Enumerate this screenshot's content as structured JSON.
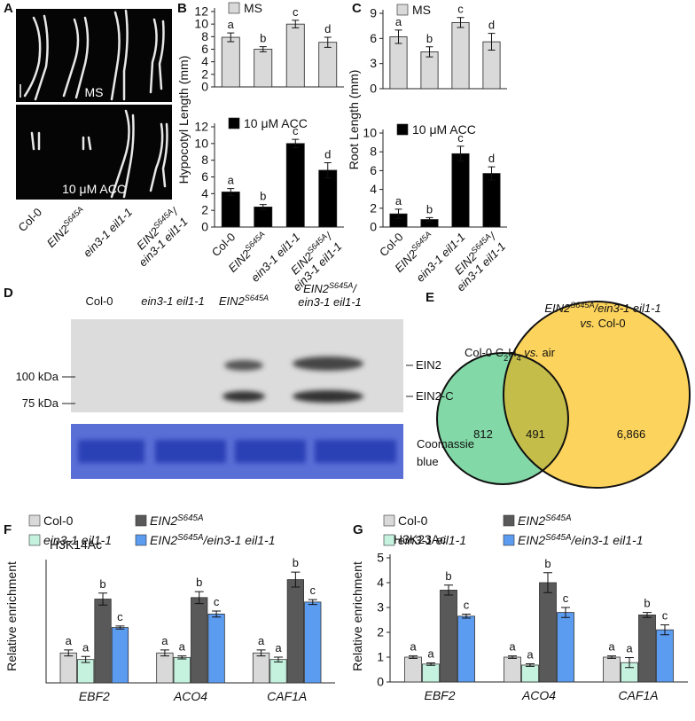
{
  "panel_labels": [
    "A",
    "B",
    "C",
    "D",
    "E",
    "F",
    "G"
  ],
  "panel_a": {
    "conditions": [
      "MS",
      "10 μM ACC"
    ],
    "genotypes": [
      [
        [
          {
            "t": "Col-0"
          }
        ]
      ],
      [
        [
          {
            "t": "EIN2",
            "i": true
          },
          {
            "t": "S645A",
            "i": true,
            "sup": true
          }
        ]
      ],
      [
        [
          {
            "t": "ein3-1 eil1-1",
            "i": true
          }
        ]
      ],
      [
        [
          {
            "t": "EIN2",
            "i": true
          },
          {
            "t": "S645A",
            "i": true,
            "sup": true
          },
          {
            "t": "/",
            "i": true
          }
        ],
        [
          {
            "t": "ein3-1 eil1-1",
            "i": true
          }
        ]
      ]
    ]
  },
  "panel_d": {
    "headers": [
      [
        [
          {
            "t": "Col-0"
          }
        ]
      ],
      [
        [
          {
            "t": "ein3-1 eil1-1",
            "i": true
          }
        ]
      ],
      [
        [
          {
            "t": "EIN2",
            "i": true
          },
          {
            "t": "S645A",
            "i": true,
            "sup": true
          }
        ]
      ],
      [
        [
          {
            "t": "EIN2",
            "i": true
          },
          {
            "t": "S645A",
            "i": true,
            "sup": true
          },
          {
            "t": "/",
            "i": true
          }
        ],
        [
          {
            "t": "ein3-1 eil1-1",
            "i": true
          }
        ]
      ]
    ],
    "markers": [
      "100 kDa",
      "75 kDa"
    ],
    "bands": [
      "EIN2",
      "EIN2-C"
    ],
    "stain": [
      "Coomassie",
      "blue"
    ]
  },
  "panel_e": {
    "left_title": [
      [
        {
          "t": "Col-0 C"
        },
        {
          "t": "2",
          "sub": true
        },
        {
          "t": "H"
        },
        {
          "t": "4",
          "sub": true
        },
        {
          "t": " "
        },
        {
          "t": "vs.",
          "i": true
        },
        {
          "t": " air"
        }
      ]
    ],
    "right_title": [
      [
        {
          "t": "EIN2",
          "i": true
        },
        {
          "t": "S645A",
          "i": true,
          "sup": true
        },
        {
          "t": "/ein3-1 eil1-1",
          "i": true
        }
      ],
      [
        {
          "t": "vs.",
          "i": true
        },
        {
          "t": " Col-0"
        }
      ]
    ],
    "left_only": "812",
    "overlap": "491",
    "right_only": "6,866"
  },
  "chart_data": [
    {
      "type": "bar",
      "ylim": [
        0,
        12
      ],
      "yticks": [
        0,
        2,
        4,
        6,
        8,
        10,
        12
      ],
      "series": [
        {
          "name": [
            [
              {
                "t": "MS"
              }
            ]
          ],
          "color": "#d9d9d9",
          "values": [
            7.9,
            6.0,
            10.0,
            7.1
          ],
          "errors": [
            0.7,
            0.4,
            0.6,
            0.8
          ],
          "letters": [
            "a",
            "b",
            "c",
            "d"
          ]
        }
      ]
    },
    {
      "type": "bar",
      "ylim": [
        0,
        12
      ],
      "yticks": [
        0,
        2,
        4,
        6,
        8,
        10,
        12
      ],
      "ylabel": "Hypocotyl Length (mm)",
      "categories": [
        [
          [
            {
              "t": "Col-0"
            }
          ]
        ],
        [
          [
            {
              "t": "EIN2",
              "i": true
            },
            {
              "t": "S645A",
              "i": true,
              "sup": true
            }
          ]
        ],
        [
          [
            {
              "t": "ein3-1 eil1-1",
              "i": true
            }
          ]
        ],
        [
          [
            {
              "t": "EIN2",
              "i": true
            },
            {
              "t": "S645A",
              "i": true,
              "sup": true
            },
            {
              "t": "/",
              "i": true
            }
          ],
          [
            {
              "t": "ein3-1 eil1-1",
              "i": true
            }
          ]
        ]
      ],
      "series": [
        {
          "name": [
            [
              {
                "t": "10 μM ACC"
              }
            ]
          ],
          "color": "#000000",
          "values": [
            4.2,
            2.4,
            10.0,
            6.8
          ],
          "errors": [
            0.4,
            0.3,
            0.5,
            0.9
          ],
          "letters": [
            "a",
            "b",
            "c",
            "d"
          ]
        }
      ]
    },
    {
      "type": "bar",
      "ylim": [
        0,
        9
      ],
      "yticks": [
        0,
        3,
        6,
        9
      ],
      "series": [
        {
          "name": [
            [
              {
                "t": "MS"
              }
            ]
          ],
          "color": "#d9d9d9",
          "values": [
            6.2,
            4.4,
            7.9,
            5.6
          ],
          "errors": [
            0.8,
            0.6,
            0.6,
            1.0
          ],
          "letters": [
            "a",
            "b",
            "c",
            "d"
          ]
        }
      ]
    },
    {
      "type": "bar",
      "ylim": [
        0,
        10
      ],
      "yticks": [
        0,
        2,
        4,
        6,
        8,
        10
      ],
      "ylabel": "Root Length (mm)",
      "categories": [
        [
          [
            {
              "t": "Col-0"
            }
          ]
        ],
        [
          [
            {
              "t": "EIN2",
              "i": true
            },
            {
              "t": "S645A",
              "i": true,
              "sup": true
            }
          ]
        ],
        [
          [
            {
              "t": "ein3-1 eil1-1",
              "i": true
            }
          ]
        ],
        [
          [
            {
              "t": "EIN2",
              "i": true
            },
            {
              "t": "S645A",
              "i": true,
              "sup": true
            },
            {
              "t": "/",
              "i": true
            }
          ],
          [
            {
              "t": "ein3-1 eil1-1",
              "i": true
            }
          ]
        ]
      ],
      "series": [
        {
          "name": [
            [
              {
                "t": "10 μM ACC"
              }
            ]
          ],
          "color": "#000000",
          "values": [
            1.4,
            0.8,
            7.8,
            5.7
          ],
          "errors": [
            0.5,
            0.2,
            0.8,
            0.7
          ],
          "letters": [
            "a",
            "b",
            "c",
            "d"
          ]
        }
      ]
    },
    {
      "type": "grouped_bar",
      "ylim": [
        0,
        4
      ],
      "ylabel": "Relative enrichment",
      "annotation": "H3K14Ac",
      "categories": [
        [
          [
            {
              "t": "EBF2",
              "i": true
            }
          ]
        ],
        [
          [
            {
              "t": "ACO4",
              "i": true
            }
          ]
        ],
        [
          [
            {
              "t": "CAF1A",
              "i": true
            }
          ]
        ]
      ],
      "series": [
        {
          "name": [
            [
              {
                "t": "Col-0"
              }
            ]
          ],
          "color": "#d9d9d9",
          "values": [
            1.0,
            1.0,
            1.0
          ],
          "errors": [
            0.1,
            0.1,
            0.1
          ],
          "letters": [
            "a",
            "a",
            "a"
          ]
        },
        {
          "name": [
            [
              {
                "t": "ein3-1 eil1-1",
                "i": true
              }
            ]
          ],
          "color": "#c4f2de",
          "values": [
            0.78,
            0.85,
            0.78
          ],
          "errors": [
            0.1,
            0.05,
            0.08
          ],
          "letters": [
            "a",
            "a",
            "a"
          ]
        },
        {
          "name": [
            [
              {
                "t": "EIN2",
                "i": true
              },
              {
                "t": "S645A",
                "i": true,
                "sup": true
              }
            ]
          ],
          "color": "#595959",
          "values": [
            2.8,
            2.85,
            3.45
          ],
          "errors": [
            0.2,
            0.2,
            0.25
          ],
          "letters": [
            "b",
            "b",
            "b"
          ]
        },
        {
          "name": [
            [
              {
                "t": "EIN2",
                "i": true
              },
              {
                "t": "S645A",
                "i": true,
                "sup": true
              },
              {
                "t": "/ein3-1 eil1-1",
                "i": true
              }
            ]
          ],
          "color": "#5b9bf0",
          "values": [
            1.85,
            2.3,
            2.7
          ],
          "errors": [
            0.05,
            0.1,
            0.08
          ],
          "letters": [
            "c",
            "c",
            "c"
          ]
        }
      ]
    },
    {
      "type": "grouped_bar",
      "ylim": [
        0,
        5
      ],
      "yticks": [
        0,
        1,
        2,
        3,
        4,
        5
      ],
      "ylabel": "Relative enrichment",
      "annotation": "H3K23Ac",
      "categories": [
        [
          [
            {
              "t": "EBF2",
              "i": true
            }
          ]
        ],
        [
          [
            {
              "t": "ACO4",
              "i": true
            }
          ]
        ],
        [
          [
            {
              "t": "CAF1A",
              "i": true
            }
          ]
        ]
      ],
      "series": [
        {
          "name": [
            [
              {
                "t": "Col-0"
              }
            ]
          ],
          "color": "#d9d9d9",
          "values": [
            1.0,
            1.0,
            1.0
          ],
          "errors": [
            0.05,
            0.05,
            0.05
          ],
          "letters": [
            "a",
            "a",
            "a"
          ]
        },
        {
          "name": [
            [
              {
                "t": "ein3-1 eil1-1",
                "i": true
              }
            ]
          ],
          "color": "#c4f2de",
          "values": [
            0.72,
            0.68,
            0.78
          ],
          "errors": [
            0.05,
            0.05,
            0.2
          ],
          "letters": [
            "a",
            "a",
            "a"
          ]
        },
        {
          "name": [
            [
              {
                "t": "EIN2",
                "i": true
              },
              {
                "t": "S645A",
                "i": true,
                "sup": true
              }
            ]
          ],
          "color": "#595959",
          "values": [
            3.7,
            4.0,
            2.7
          ],
          "errors": [
            0.2,
            0.4,
            0.1
          ],
          "letters": [
            "b",
            "b",
            "b"
          ]
        },
        {
          "name": [
            [
              {
                "t": "EIN2",
                "i": true
              },
              {
                "t": "S645A",
                "i": true,
                "sup": true
              },
              {
                "t": "/ein3-1 eil1-1",
                "i": true
              }
            ]
          ],
          "color": "#5b9bf0",
          "values": [
            2.65,
            2.8,
            2.1
          ],
          "errors": [
            0.08,
            0.2,
            0.2
          ],
          "letters": [
            "c",
            "c",
            "c"
          ]
        }
      ]
    }
  ]
}
